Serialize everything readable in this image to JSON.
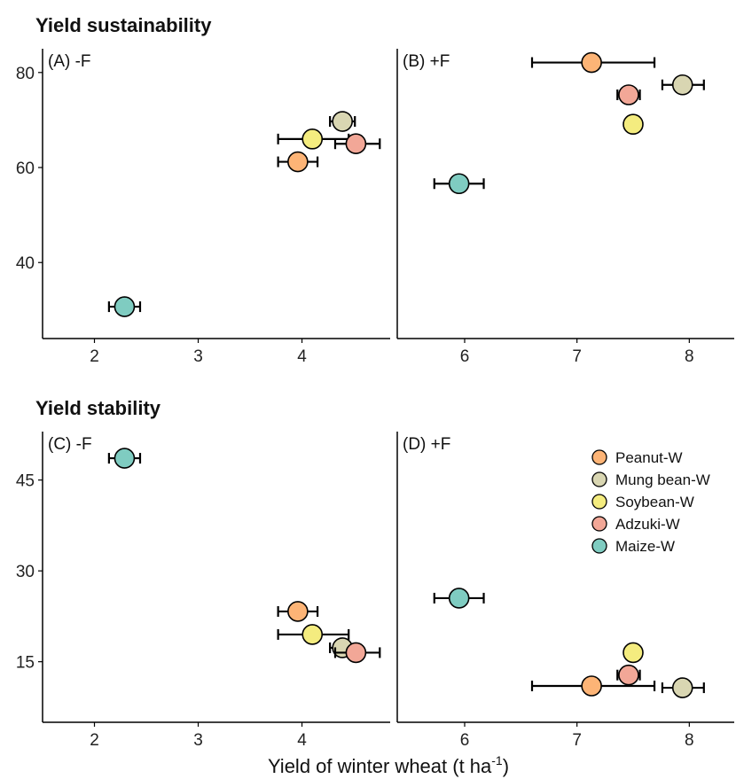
{
  "colors": {
    "Peanut-W": "#FDB476",
    "Mung bean-W": "#D9D6B2",
    "Soybean-W": "#F4EC7F",
    "Adzuki-W": "#F2A797",
    "Maize-W": "#7FCCC1"
  },
  "figure": {
    "x_axis_title": "Yield of winter wheat (t ha",
    "x_axis_title_sup": "-1",
    "x_axis_title_end": ")"
  },
  "chart_data": [
    {
      "type": "scatter",
      "section_title": "Yield sustainability",
      "panel_label": "(A) -F",
      "xlim": [
        1.5,
        4.85
      ],
      "ylim": [
        24,
        85
      ],
      "xticks": [
        2,
        3,
        4
      ],
      "yticks": [
        40,
        60,
        80
      ],
      "show_y_ticks": true,
      "points": [
        {
          "series": "Peanut-W",
          "x": 3.96,
          "y": 61.2,
          "xerr": [
            3.77,
            4.15
          ]
        },
        {
          "series": "Mung bean-W",
          "x": 4.39,
          "y": 69.7,
          "xerr": [
            4.27,
            4.51
          ]
        },
        {
          "series": "Soybean-W",
          "x": 4.1,
          "y": 66.0,
          "xerr": [
            3.77,
            4.45
          ]
        },
        {
          "series": "Adzuki-W",
          "x": 4.52,
          "y": 65.0,
          "xerr": [
            4.32,
            4.75
          ]
        },
        {
          "series": "Maize-W",
          "x": 2.29,
          "y": 30.7,
          "xerr": [
            2.14,
            2.44
          ]
        }
      ]
    },
    {
      "type": "scatter",
      "section_title": "",
      "panel_label": "(B) +F",
      "xlim": [
        5.4,
        8.4
      ],
      "ylim": [
        24,
        85
      ],
      "xticks": [
        6,
        7,
        8
      ],
      "yticks": [
        40,
        60,
        80
      ],
      "show_y_ticks": false,
      "points": [
        {
          "series": "Peanut-W",
          "x": 7.13,
          "y": 82.1,
          "xerr": [
            6.6,
            7.69
          ]
        },
        {
          "series": "Mung bean-W",
          "x": 7.94,
          "y": 77.4,
          "xerr": [
            7.76,
            8.13
          ]
        },
        {
          "series": "Soybean-W",
          "x": 7.5,
          "y": 69.1,
          "xerr": [
            7.45,
            7.55
          ]
        },
        {
          "series": "Adzuki-W",
          "x": 7.46,
          "y": 75.3,
          "xerr": [
            7.36,
            7.56
          ]
        },
        {
          "series": "Maize-W",
          "x": 5.95,
          "y": 56.6,
          "xerr": [
            5.73,
            6.17
          ]
        }
      ]
    },
    {
      "type": "scatter",
      "section_title": "Yield stability",
      "panel_label": "(C) -F",
      "xlim": [
        1.5,
        4.85
      ],
      "ylim": [
        5,
        53
      ],
      "xticks": [
        2,
        3,
        4
      ],
      "yticks": [
        15,
        30,
        45
      ],
      "show_y_ticks": true,
      "points": [
        {
          "series": "Peanut-W",
          "x": 3.96,
          "y": 23.3,
          "xerr": [
            3.77,
            4.15
          ]
        },
        {
          "series": "Mung bean-W",
          "x": 4.39,
          "y": 17.3,
          "xerr": [
            4.27,
            4.51
          ]
        },
        {
          "series": "Soybean-W",
          "x": 4.1,
          "y": 19.5,
          "xerr": [
            3.77,
            4.45
          ]
        },
        {
          "series": "Adzuki-W",
          "x": 4.52,
          "y": 16.5,
          "xerr": [
            4.32,
            4.75
          ]
        },
        {
          "series": "Maize-W",
          "x": 2.29,
          "y": 48.6,
          "xerr": [
            2.14,
            2.44
          ]
        }
      ]
    },
    {
      "type": "scatter",
      "section_title": "",
      "panel_label": "(D) +F",
      "xlim": [
        5.4,
        8.4
      ],
      "ylim": [
        5,
        53
      ],
      "xticks": [
        6,
        7,
        8
      ],
      "yticks": [
        15,
        30,
        45
      ],
      "show_y_ticks": false,
      "legend": {
        "position": "top-right",
        "entries": [
          "Peanut-W",
          "Mung bean-W",
          "Soybean-W",
          "Adzuki-W",
          "Maize-W"
        ]
      },
      "points": [
        {
          "series": "Peanut-W",
          "x": 7.13,
          "y": 11.0,
          "xerr": [
            6.6,
            7.69
          ]
        },
        {
          "series": "Mung bean-W",
          "x": 7.94,
          "y": 10.7,
          "xerr": [
            7.76,
            8.13
          ]
        },
        {
          "series": "Soybean-W",
          "x": 7.5,
          "y": 16.5,
          "xerr": [
            7.45,
            7.55
          ]
        },
        {
          "series": "Adzuki-W",
          "x": 7.46,
          "y": 12.8,
          "xerr": [
            7.36,
            7.56
          ]
        },
        {
          "series": "Maize-W",
          "x": 5.95,
          "y": 25.5,
          "xerr": [
            5.73,
            6.17
          ]
        }
      ]
    }
  ]
}
